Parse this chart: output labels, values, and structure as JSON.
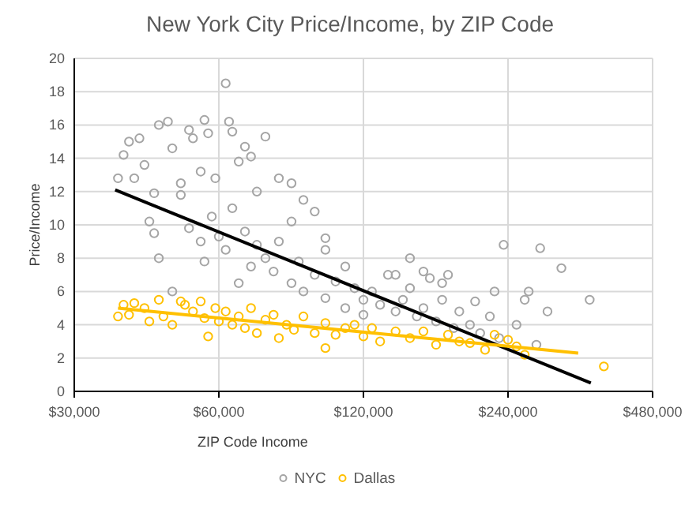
{
  "chart_data": {
    "type": "scatter",
    "title": "New York City Price/Income, by ZIP Code",
    "xlabel": "ZIP Code Income",
    "ylabel": "Price/Income",
    "log": "x",
    "grid": true,
    "legend": "bottom",
    "marker": "circle",
    "xlim": [
      30000,
      480000
    ],
    "xticks": [
      {
        "value": 30000,
        "label": "$30,000"
      },
      {
        "value": 60000,
        "label": "$60,000"
      },
      {
        "value": 120000,
        "label": "$120,000"
      },
      {
        "value": 240000,
        "label": "$240,000"
      },
      {
        "value": 480000,
        "label": "$480,000"
      }
    ],
    "ylim": [
      0,
      20
    ],
    "yticks": [
      0,
      2,
      4,
      6,
      8,
      10,
      12,
      14,
      16,
      18,
      20
    ],
    "series": [
      {
        "name": "NYC",
        "color": "#a5a5a5",
        "x": [
          37000,
          38000,
          39000,
          40000,
          41000,
          42000,
          44000,
          45000,
          47000,
          48000,
          50000,
          52000,
          53000,
          55000,
          56000,
          57000,
          59000,
          62000,
          63000,
          64000,
          66000,
          68000,
          70000,
          72000,
          75000,
          80000,
          85000,
          90000,
          43000,
          44000,
          45000,
          48000,
          50000,
          52000,
          55000,
          56000,
          58000,
          60000,
          62000,
          64000,
          66000,
          68000,
          70000,
          72000,
          75000,
          78000,
          80000,
          85000,
          88000,
          90000,
          95000,
          100000,
          100000,
          105000,
          110000,
          110000,
          115000,
          120000,
          120000,
          125000,
          130000,
          135000,
          140000,
          145000,
          150000,
          155000,
          160000,
          165000,
          170000,
          175000,
          180000,
          185000,
          190000,
          200000,
          205000,
          210000,
          220000,
          225000,
          230000,
          235000,
          250000,
          260000,
          265000,
          275000,
          280000,
          290000,
          310000,
          355000,
          95000,
          100000,
          85000,
          140000,
          160000,
          175000,
          150000
        ],
        "values": [
          12.8,
          14.2,
          15,
          12.8,
          15.2,
          13.6,
          11.9,
          16,
          16.2,
          14.6,
          12.5,
          15.7,
          15.2,
          13.2,
          16.3,
          15.5,
          12.8,
          18.5,
          16.2,
          15.6,
          13.8,
          14.7,
          14.1,
          12,
          15.3,
          12.8,
          12.5,
          11.5,
          10.2,
          9.5,
          8,
          6,
          11.8,
          9.8,
          9,
          7.8,
          10.5,
          9.3,
          8.5,
          11,
          6.5,
          9.6,
          7.5,
          8.8,
          8,
          7.2,
          9,
          6.5,
          7.8,
          6,
          7,
          5.6,
          8.5,
          6.6,
          5,
          7.5,
          6.2,
          5.5,
          4.6,
          6,
          5.2,
          7,
          4.8,
          5.5,
          6.2,
          4.5,
          5,
          6.8,
          4.2,
          5.5,
          7,
          3.8,
          4.8,
          4,
          5.4,
          3.5,
          4.5,
          6,
          3.2,
          8.8,
          4,
          5.5,
          6,
          2.8,
          8.6,
          4.8,
          7.4,
          5.5,
          10.8,
          9.2,
          10.2,
          7,
          7.2,
          6.5,
          8
        ]
      },
      {
        "name": "Dallas",
        "color": "#ffc000",
        "x": [
          37000,
          38000,
          39000,
          40000,
          42000,
          43000,
          45000,
          46000,
          48000,
          50000,
          51000,
          53000,
          55000,
          56000,
          57000,
          59000,
          60000,
          62000,
          64000,
          66000,
          68000,
          70000,
          72000,
          75000,
          78000,
          80000,
          83000,
          86000,
          90000,
          95000,
          100000,
          100000,
          105000,
          110000,
          115000,
          120000,
          125000,
          130000,
          140000,
          150000,
          160000,
          170000,
          180000,
          190000,
          200000,
          215000,
          225000,
          240000,
          250000,
          260000,
          380000
        ],
        "values": [
          4.5,
          5.2,
          4.6,
          5.3,
          5,
          4.2,
          5.5,
          4.5,
          4,
          5.4,
          5.2,
          4.8,
          5.4,
          4.4,
          3.3,
          5,
          4.2,
          4.8,
          4,
          4.5,
          3.8,
          5,
          3.5,
          4.3,
          4.6,
          3.2,
          4,
          3.7,
          4.5,
          3.5,
          4.1,
          2.6,
          3.4,
          3.8,
          4,
          3.3,
          3.8,
          3,
          3.6,
          3.2,
          3.6,
          2.8,
          3.4,
          3,
          2.9,
          2.5,
          3.4,
          3.1,
          2.7,
          2.2,
          1.5
        ]
      },
      {
        "type": "line",
        "color": "#000000",
        "marker": "none",
        "x": [
          36500,
          357000
        ],
        "values": [
          12.1,
          0.5
        ]
      },
      {
        "type": "line",
        "color": "#ffc000",
        "marker": "none",
        "x": [
          37000,
          336000
        ],
        "values": [
          5,
          2.3
        ]
      }
    ]
  }
}
